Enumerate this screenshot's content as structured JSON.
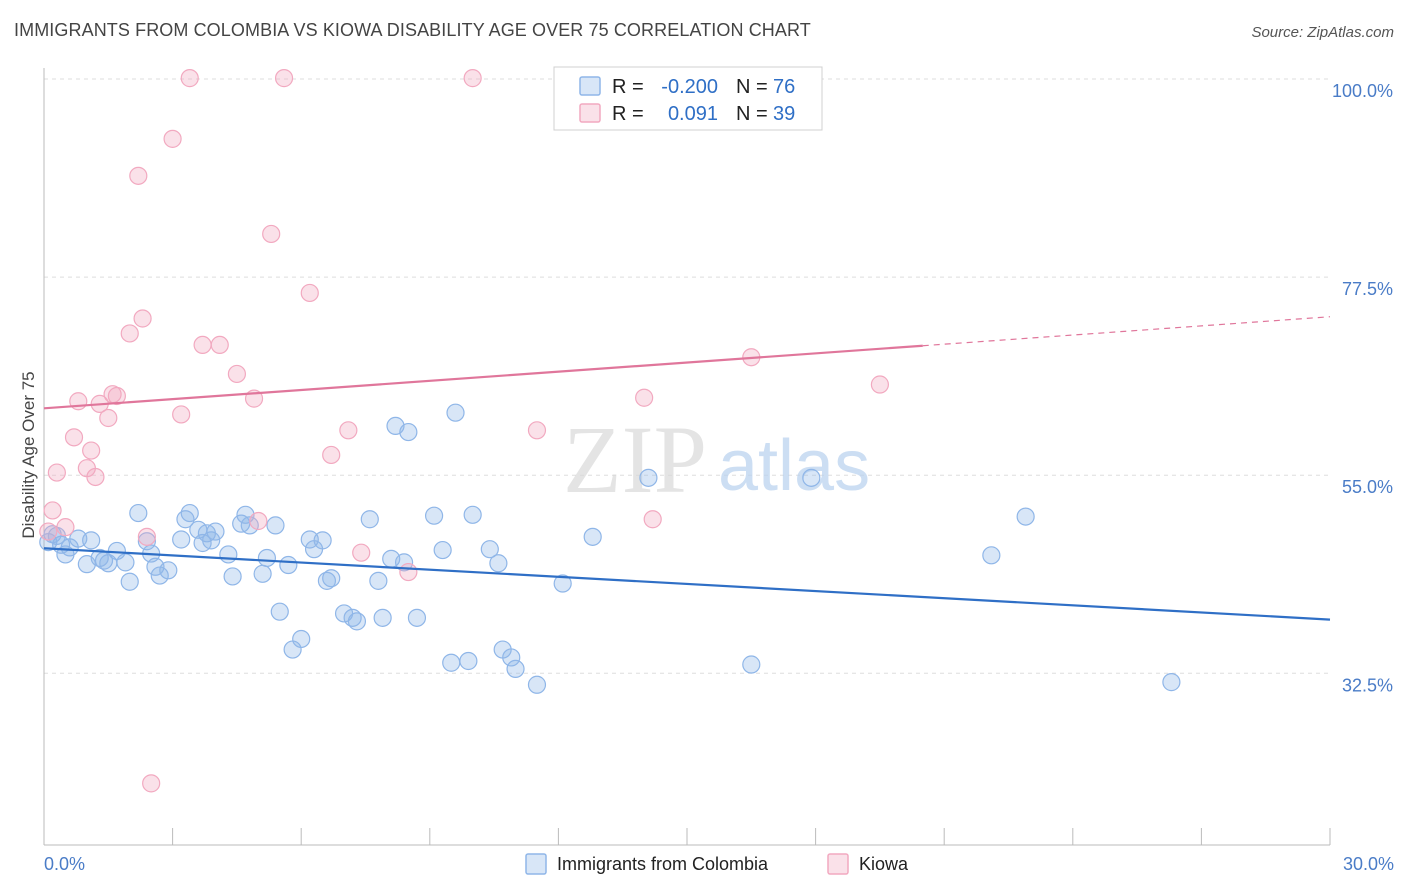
{
  "title": "IMMIGRANTS FROM COLOMBIA VS KIOWA DISABILITY AGE OVER 75 CORRELATION CHART",
  "source": "Source: ZipAtlas.com",
  "watermark": {
    "zip": "ZIP",
    "atlas": "atlas"
  },
  "stats": [
    {
      "r_label": "R =",
      "r_value": "-0.200",
      "n_label": "N =",
      "n_value": "76",
      "color": "#8fb6e8"
    },
    {
      "r_label": "R =",
      "r_value": "0.091",
      "n_label": "N =",
      "n_value": "39",
      "color": "#f2a9c0"
    }
  ],
  "chart_data": {
    "type": "scatter",
    "title": "IMMIGRANTS FROM COLOMBIA VS KIOWA DISABILITY AGE OVER 75 CORRELATION CHART",
    "xlabel": "",
    "ylabel": "Disability Age Over 75",
    "xlim": [
      0,
      30
    ],
    "ylim": [
      13,
      102
    ],
    "x_tick_labels": [
      "0.0%",
      "30.0%"
    ],
    "y_ticks": [
      32.5,
      55.0,
      77.5,
      100.0
    ],
    "y_tick_labels": [
      "32.5%",
      "55.0%",
      "77.5%",
      "100.0%"
    ],
    "grid": true,
    "legend_position": "bottom-center",
    "series": [
      {
        "name": "Immigrants from Colombia",
        "color": "#8fb6e8",
        "line_color": "#2f6fc6",
        "trend": {
          "x": [
            0,
            30
          ],
          "y": [
            46.7,
            38.6
          ]
        },
        "points": [
          [
            0.1,
            47.4
          ],
          [
            0.2,
            48.3
          ],
          [
            0.3,
            48.1
          ],
          [
            0.4,
            47.1
          ],
          [
            0.5,
            46.0
          ],
          [
            0.6,
            46.8
          ],
          [
            0.8,
            47.8
          ],
          [
            1.0,
            44.9
          ],
          [
            1.1,
            47.6
          ],
          [
            1.3,
            45.6
          ],
          [
            1.4,
            45.3
          ],
          [
            1.5,
            45.0
          ],
          [
            1.7,
            46.4
          ],
          [
            1.9,
            45.1
          ],
          [
            2.0,
            42.9
          ],
          [
            2.2,
            50.7
          ],
          [
            2.4,
            47.5
          ],
          [
            2.5,
            46.1
          ],
          [
            2.6,
            44.6
          ],
          [
            2.7,
            43.6
          ],
          [
            2.9,
            44.2
          ],
          [
            3.2,
            47.7
          ],
          [
            3.3,
            50.0
          ],
          [
            3.4,
            50.7
          ],
          [
            3.6,
            48.8
          ],
          [
            3.7,
            47.3
          ],
          [
            3.8,
            48.4
          ],
          [
            3.9,
            47.6
          ],
          [
            4.0,
            48.6
          ],
          [
            4.3,
            46.0
          ],
          [
            4.4,
            43.5
          ],
          [
            4.6,
            49.5
          ],
          [
            4.7,
            50.5
          ],
          [
            4.8,
            49.3
          ],
          [
            5.1,
            43.8
          ],
          [
            5.2,
            45.6
          ],
          [
            5.4,
            49.3
          ],
          [
            5.5,
            39.5
          ],
          [
            5.7,
            44.8
          ],
          [
            5.8,
            35.2
          ],
          [
            6.0,
            36.4
          ],
          [
            6.2,
            47.7
          ],
          [
            6.3,
            46.6
          ],
          [
            6.5,
            47.6
          ],
          [
            6.6,
            43.0
          ],
          [
            6.7,
            43.3
          ],
          [
            7.0,
            39.3
          ],
          [
            7.2,
            38.8
          ],
          [
            7.3,
            38.4
          ],
          [
            7.6,
            50.0
          ],
          [
            7.8,
            43.0
          ],
          [
            7.9,
            38.8
          ],
          [
            8.1,
            45.5
          ],
          [
            8.2,
            60.6
          ],
          [
            8.4,
            45.1
          ],
          [
            8.5,
            59.9
          ],
          [
            8.7,
            38.8
          ],
          [
            9.1,
            50.4
          ],
          [
            9.3,
            46.5
          ],
          [
            9.5,
            33.7
          ],
          [
            9.6,
            62.1
          ],
          [
            9.9,
            33.9
          ],
          [
            10.0,
            50.5
          ],
          [
            10.4,
            46.6
          ],
          [
            10.6,
            45.0
          ],
          [
            10.7,
            35.2
          ],
          [
            10.9,
            34.3
          ],
          [
            11.0,
            33.0
          ],
          [
            11.5,
            31.2
          ],
          [
            12.1,
            42.7
          ],
          [
            12.8,
            48.0
          ],
          [
            14.1,
            54.7
          ],
          [
            16.5,
            33.5
          ],
          [
            17.9,
            54.7
          ],
          [
            22.1,
            45.9
          ],
          [
            22.9,
            50.3
          ],
          [
            26.3,
            31.5
          ]
        ]
      },
      {
        "name": "Kiowa",
        "color": "#f2a9c0",
        "line_color": "#e0769b",
        "trend": {
          "x": [
            0,
            30
          ],
          "y": [
            62.6,
            73.0
          ]
        },
        "trend_solid_to_x": 20.5,
        "points": [
          [
            0.1,
            48.6
          ],
          [
            0.2,
            51.0
          ],
          [
            0.3,
            55.3
          ],
          [
            0.5,
            49.1
          ],
          [
            0.7,
            59.3
          ],
          [
            0.8,
            63.4
          ],
          [
            1.0,
            55.8
          ],
          [
            1.1,
            57.8
          ],
          [
            1.2,
            54.8
          ],
          [
            1.3,
            63.1
          ],
          [
            1.5,
            61.5
          ],
          [
            1.6,
            64.2
          ],
          [
            1.7,
            64.0
          ],
          [
            2.0,
            71.1
          ],
          [
            2.2,
            89.0
          ],
          [
            2.3,
            72.8
          ],
          [
            2.4,
            48.0
          ],
          [
            2.5,
            20.0
          ],
          [
            3.0,
            93.2
          ],
          [
            3.2,
            61.9
          ],
          [
            3.4,
            100.1
          ],
          [
            3.7,
            69.8
          ],
          [
            4.1,
            69.8
          ],
          [
            4.5,
            66.5
          ],
          [
            4.9,
            63.7
          ],
          [
            5.0,
            49.8
          ],
          [
            5.3,
            82.4
          ],
          [
            5.6,
            100.1
          ],
          [
            6.2,
            75.7
          ],
          [
            6.7,
            57.3
          ],
          [
            7.1,
            60.1
          ],
          [
            7.4,
            46.2
          ],
          [
            8.5,
            44.0
          ],
          [
            10.0,
            100.1
          ],
          [
            11.5,
            60.1
          ],
          [
            14.0,
            63.8
          ],
          [
            14.2,
            50.0
          ],
          [
            16.5,
            68.4
          ],
          [
            19.5,
            65.3
          ]
        ]
      }
    ]
  }
}
